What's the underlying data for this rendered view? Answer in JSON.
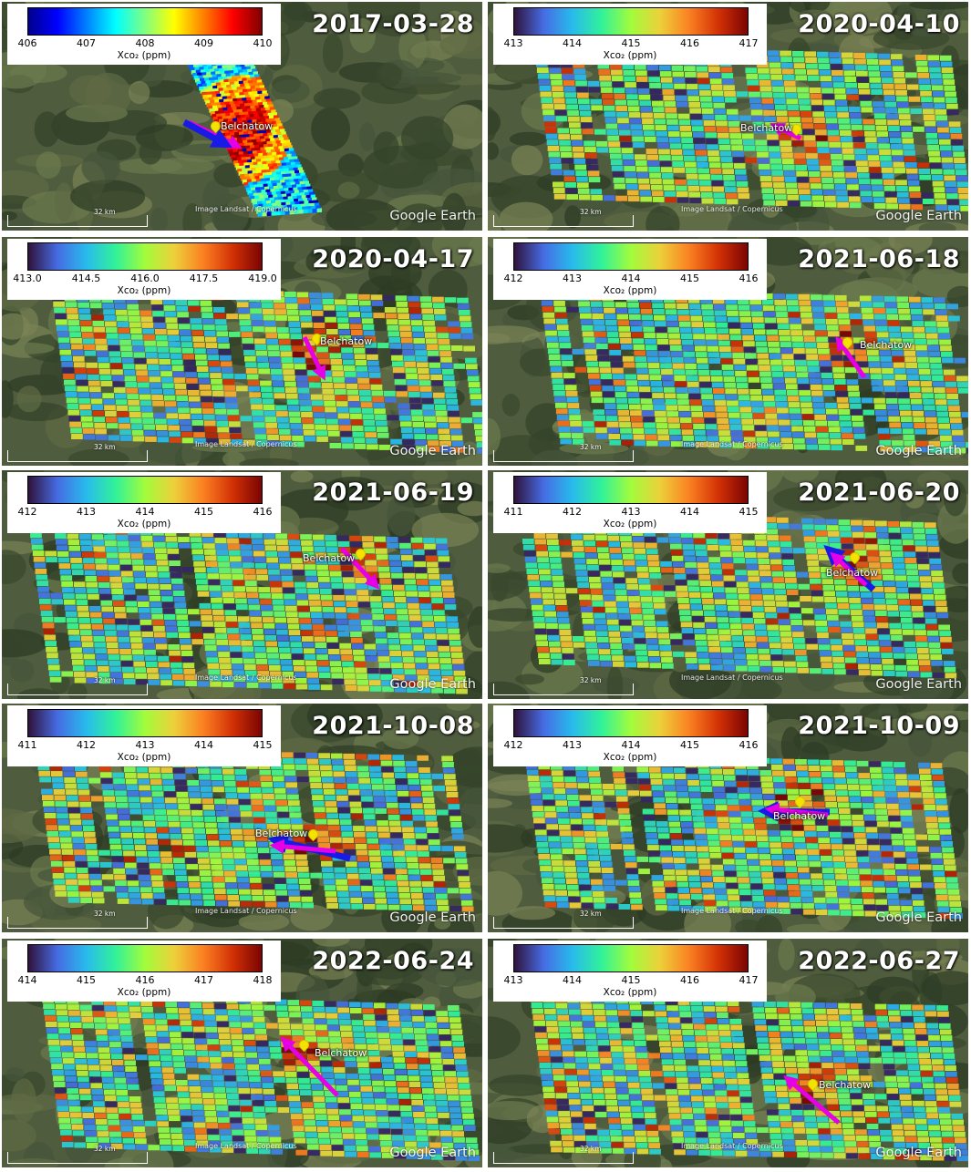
{
  "image": {
    "label_place": "Belchatow",
    "brand": "Google Earth",
    "credit": "Image Landsat / Copernicus",
    "scale_label": "32 km",
    "colorbar_label": "Xco₂ (ppm)"
  },
  "panels": [
    {
      "date": "2017-03-28",
      "ticks": [
        "406",
        "407",
        "408",
        "409",
        "410"
      ],
      "cmap": "jet",
      "mode": "swath"
    },
    {
      "date": "2020-04-10",
      "ticks": [
        "413",
        "414",
        "415",
        "416",
        "417"
      ],
      "cmap": "turbo",
      "mode": "wide"
    },
    {
      "date": "2020-04-17",
      "ticks": [
        "413.0",
        "414.5",
        "416.0",
        "417.5",
        "419.0"
      ],
      "cmap": "turbo",
      "mode": "wide"
    },
    {
      "date": "2021-06-18",
      "ticks": [
        "412",
        "413",
        "414",
        "415",
        "416"
      ],
      "cmap": "turbo",
      "mode": "wide"
    },
    {
      "date": "2021-06-19",
      "ticks": [
        "412",
        "413",
        "414",
        "415",
        "416"
      ],
      "cmap": "turbo",
      "mode": "wide"
    },
    {
      "date": "2021-06-20",
      "ticks": [
        "411",
        "412",
        "413",
        "414",
        "415"
      ],
      "cmap": "turbo",
      "mode": "wide"
    },
    {
      "date": "2021-10-08",
      "ticks": [
        "411",
        "412",
        "413",
        "414",
        "415"
      ],
      "cmap": "turbo",
      "mode": "wide"
    },
    {
      "date": "2021-10-09",
      "ticks": [
        "412",
        "413",
        "414",
        "415",
        "416"
      ],
      "cmap": "turbo",
      "mode": "wide"
    },
    {
      "date": "2022-06-24",
      "ticks": [
        "414",
        "415",
        "416",
        "417",
        "418"
      ],
      "cmap": "turbo",
      "mode": "wide"
    },
    {
      "date": "2022-06-27",
      "ticks": [
        "413",
        "414",
        "415",
        "416",
        "417"
      ],
      "cmap": "turbo",
      "mode": "wide"
    }
  ],
  "colors": {
    "arrow_wind": "#e600e6",
    "arrow_plume": "#1a1ae6",
    "pin": "#f4e300"
  }
}
